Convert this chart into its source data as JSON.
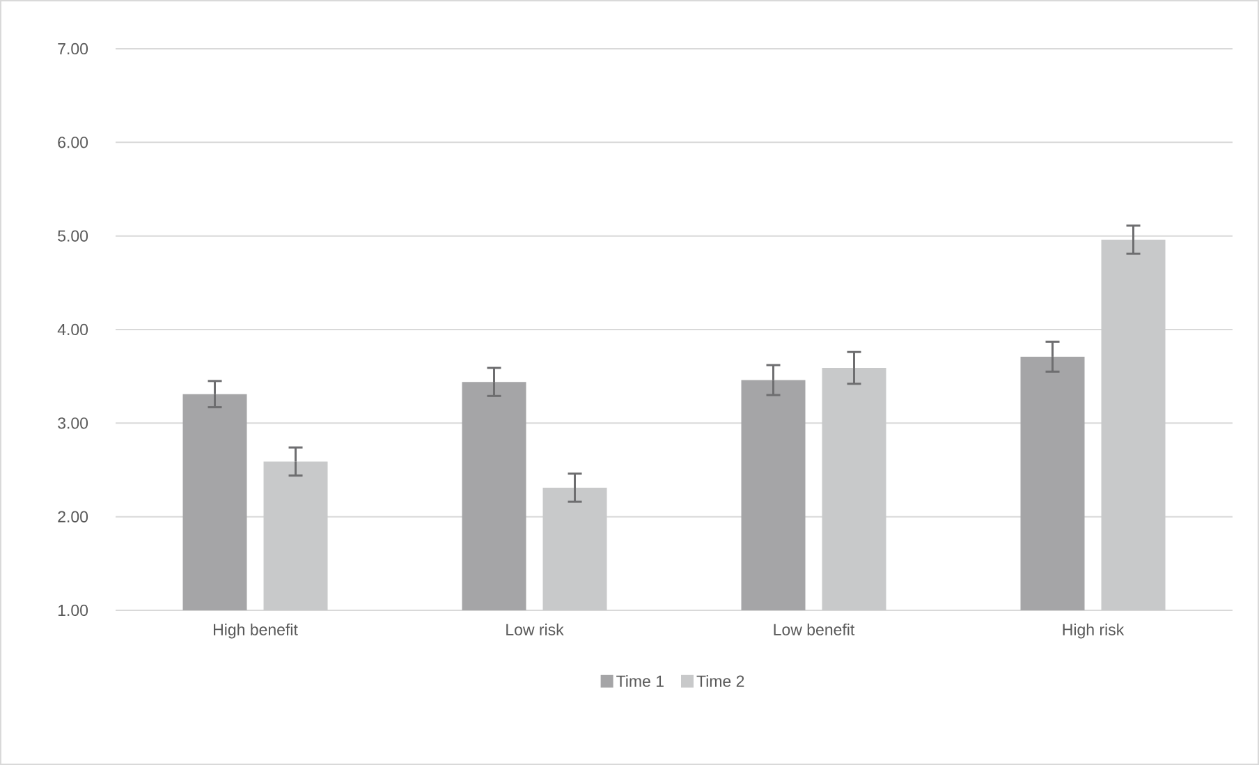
{
  "chart_data": {
    "type": "bar",
    "categories": [
      "High benefit",
      "Low risk",
      "Low benefit",
      "High risk"
    ],
    "series": [
      {
        "name": "Time 1",
        "color": "#a5a5a7",
        "values": [
          3.31,
          3.44,
          3.46,
          3.71
        ],
        "errors": [
          0.14,
          0.15,
          0.16,
          0.16
        ]
      },
      {
        "name": "Time 2",
        "color": "#c8c9ca",
        "values": [
          2.59,
          2.31,
          3.59,
          4.96
        ],
        "errors": [
          0.15,
          0.15,
          0.17,
          0.15
        ]
      }
    ],
    "ylim": [
      1,
      7
    ],
    "yticks": [
      {
        "value": 1,
        "label": "1.00"
      },
      {
        "value": 2,
        "label": "2.00"
      },
      {
        "value": 3,
        "label": "3.00"
      },
      {
        "value": 4,
        "label": "4.00"
      },
      {
        "value": 5,
        "label": "5.00"
      },
      {
        "value": 6,
        "label": "6.00"
      },
      {
        "value": 7,
        "label": "7.00"
      }
    ],
    "grid": "y",
    "legend": "bottom"
  }
}
